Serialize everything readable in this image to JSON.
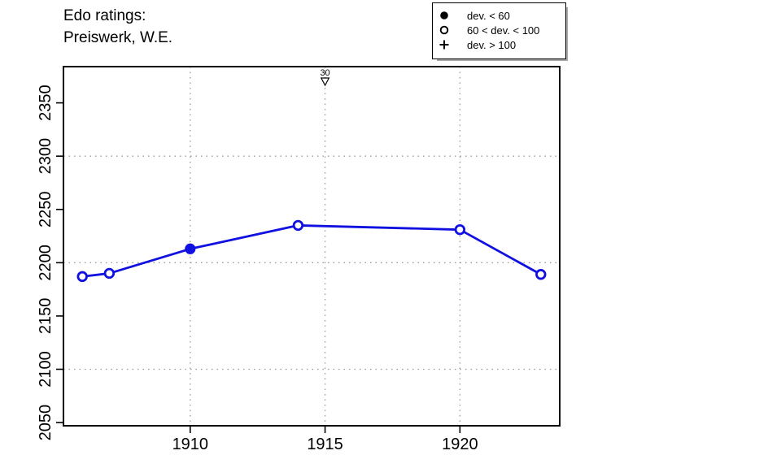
{
  "title": {
    "line1": "Edo ratings:",
    "line2": "Preiswerk, W.E."
  },
  "legend": {
    "items": [
      {
        "symbol": "filled-circle",
        "label": "dev. < 60"
      },
      {
        "symbol": "open-circle",
        "label": "60 < dev. < 100"
      },
      {
        "symbol": "plus",
        "label": "dev. > 100"
      }
    ]
  },
  "chart_data": {
    "type": "line",
    "title": "Edo ratings: Preiswerk, W.E.",
    "x": [
      1906,
      1907,
      1910,
      1914,
      1920,
      1923
    ],
    "y": [
      2187,
      2190,
      2213,
      2235,
      2231,
      2189
    ],
    "point_symbols": [
      "open-circle",
      "open-circle",
      "filled-circle",
      "open-circle",
      "open-circle",
      "open-circle"
    ],
    "series_name": "Edo rating",
    "xlabel": "",
    "ylabel": "",
    "x_ticks": [
      1910,
      1915,
      1920
    ],
    "y_ticks": [
      2050,
      2100,
      2150,
      2200,
      2250,
      2300,
      2350
    ],
    "x_gridlines": [
      1910,
      1915,
      1920
    ],
    "y_gridlines": [
      2100,
      2200,
      2300
    ],
    "xlim": [
      1905.3,
      1923.7
    ],
    "ylim": [
      2047,
      2384
    ],
    "grid": true,
    "legend_position": "top-right",
    "annotations": [
      {
        "x": 1915,
        "label": "30",
        "symbol": "open-triangle-down"
      }
    ]
  },
  "colors": {
    "line": "#1010e0",
    "grid": "#999999",
    "axis": "#000000",
    "annotation": "#000000",
    "background": "#ffffff"
  }
}
